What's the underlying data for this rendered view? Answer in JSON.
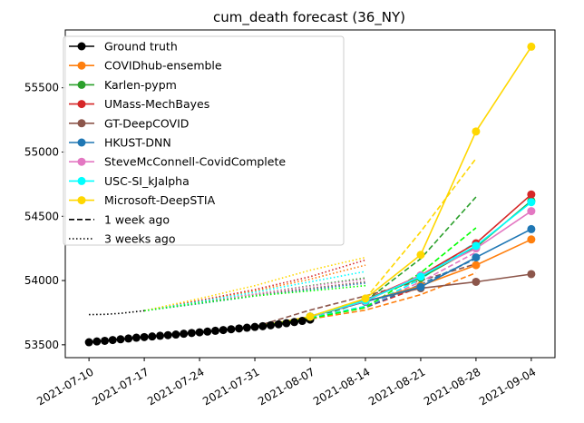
{
  "chart_data": {
    "type": "line",
    "title": "cum_death forecast (36_NY)",
    "xlabel": "",
    "ylabel": "",
    "x_ticks": [
      "2021-07-10",
      "2021-07-17",
      "2021-07-24",
      "2021-07-31",
      "2021-08-07",
      "2021-08-14",
      "2021-08-21",
      "2021-08-28",
      "2021-09-04"
    ],
    "x_range": [
      "2021-07-07",
      "2021-09-07"
    ],
    "y_ticks": [
      53500,
      54000,
      54500,
      55000,
      55500
    ],
    "ylim": [
      53400,
      55950
    ],
    "legend_position": "top-left",
    "grid": false,
    "ground_truth": {
      "name": "Ground truth",
      "color": "#000000",
      "x": [
        "2021-07-10",
        "2021-07-11",
        "2021-07-12",
        "2021-07-13",
        "2021-07-14",
        "2021-07-15",
        "2021-07-16",
        "2021-07-17",
        "2021-07-18",
        "2021-07-19",
        "2021-07-20",
        "2021-07-21",
        "2021-07-22",
        "2021-07-23",
        "2021-07-24",
        "2021-07-25",
        "2021-07-26",
        "2021-07-27",
        "2021-07-28",
        "2021-07-29",
        "2021-07-30",
        "2021-07-31",
        "2021-08-01",
        "2021-08-02",
        "2021-08-03",
        "2021-08-04",
        "2021-08-05",
        "2021-08-06",
        "2021-08-07"
      ],
      "y": [
        53520,
        53526,
        53531,
        53537,
        53543,
        53549,
        53555,
        53560,
        53565,
        53570,
        53575,
        53580,
        53586,
        53592,
        53597,
        53603,
        53609,
        53615,
        53621,
        53627,
        53633,
        53639,
        53645,
        53652,
        53660,
        53668,
        53677,
        53686,
        53696
      ]
    },
    "series": [
      {
        "name": "COVIDhub-ensemble",
        "color": "#ff7f0e",
        "x": [
          "2021-08-07",
          "2021-08-14",
          "2021-08-21",
          "2021-08-28",
          "2021-09-04"
        ],
        "y": [
          53720,
          53835,
          53960,
          54120,
          54320
        ],
        "week1_x": [
          "2021-07-31",
          "2021-08-07",
          "2021-08-14",
          "2021-08-21",
          "2021-08-28"
        ],
        "week1_y": [
          53640,
          53700,
          53770,
          53890,
          54060
        ],
        "week3_x": [
          "2021-07-17",
          "2021-07-24",
          "2021-07-31",
          "2021-08-07",
          "2021-08-14"
        ],
        "week3_y": [
          53765,
          53840,
          53920,
          54010,
          54120
        ]
      },
      {
        "name": "Karlen-pypm",
        "color": "#2ca02c",
        "x": [
          "2021-08-07",
          "2021-08-14",
          "2021-08-21",
          "2021-08-28",
          "2021-09-04"
        ],
        "y": [
          53720,
          53850,
          54020,
          54260,
          54620
        ],
        "week1_x": [
          "2021-07-31",
          "2021-08-07",
          "2021-08-14",
          "2021-08-21",
          "2021-08-28"
        ],
        "week1_y": [
          53640,
          53700,
          53840,
          54170,
          54650
        ],
        "week3_x": [
          "2021-07-17",
          "2021-07-24",
          "2021-07-31",
          "2021-08-07",
          "2021-08-14"
        ],
        "week3_y": [
          53765,
          53830,
          53895,
          53960,
          54020
        ]
      },
      {
        "name": "UMass-MechBayes",
        "color": "#d62728",
        "x": [
          "2021-08-07",
          "2021-08-14",
          "2021-08-21",
          "2021-08-28",
          "2021-09-04"
        ],
        "y": [
          53720,
          53850,
          54040,
          54290,
          54670
        ],
        "week1_x": [
          "2021-07-31",
          "2021-08-07",
          "2021-08-14",
          "2021-08-21",
          "2021-08-28"
        ],
        "week1_y": [
          53640,
          53710,
          53790,
          53950,
          54180
        ],
        "week3_x": [
          "2021-07-17",
          "2021-07-24",
          "2021-07-31",
          "2021-08-07",
          "2021-08-14"
        ],
        "week3_y": [
          53765,
          53845,
          53930,
          54030,
          54160
        ]
      },
      {
        "name": "GT-DeepCOVID",
        "color": "#8c564b",
        "x": [
          "2021-08-07",
          "2021-08-14",
          "2021-08-21",
          "2021-08-28",
          "2021-09-04"
        ],
        "y": [
          53720,
          53840,
          53940,
          53990,
          54050
        ],
        "week1_x": [
          "2021-07-31",
          "2021-08-07",
          "2021-08-14",
          "2021-08-21",
          "2021-08-28"
        ],
        "week1_y": [
          53640,
          53770,
          53880,
          54000,
          54130
        ],
        "week3_x": [
          "2021-07-17",
          "2021-07-24",
          "2021-07-31",
          "2021-08-07",
          "2021-08-14"
        ],
        "week3_y": [
          53765,
          53830,
          53890,
          53940,
          53990
        ]
      },
      {
        "name": "HKUST-DNN",
        "color": "#1f77b4",
        "x": [
          "2021-08-07",
          "2021-08-14",
          "2021-08-21",
          "2021-08-28",
          "2021-09-04"
        ],
        "y": [
          53720,
          53835,
          53950,
          54180,
          54400
        ],
        "week1_x": [
          "2021-07-31",
          "2021-08-07",
          "2021-08-14",
          "2021-08-21",
          "2021-08-28"
        ],
        "week1_y": [
          53640,
          53710,
          53790,
          53970,
          54170
        ],
        "week3_x": [
          "2021-07-17",
          "2021-07-24",
          "2021-07-31",
          "2021-08-07",
          "2021-08-14"
        ],
        "week3_y": [
          53765,
          53820,
          53880,
          53930,
          53980
        ]
      },
      {
        "name": "SteveMcConnell-CovidComplete",
        "color": "#e377c2",
        "x": [
          "2021-08-07",
          "2021-08-14",
          "2021-08-21",
          "2021-08-28",
          "2021-09-04"
        ],
        "y": [
          53720,
          53840,
          54040,
          54250,
          54540
        ],
        "week1_x": [
          "2021-07-31",
          "2021-08-07",
          "2021-08-14",
          "2021-08-21",
          "2021-08-28"
        ],
        "week1_y": [
          53640,
          53710,
          53800,
          53990,
          54220
        ],
        "week3_x": [
          "2021-07-17",
          "2021-07-24",
          "2021-07-31",
          "2021-08-07",
          "2021-08-14"
        ],
        "week3_y": [
          53765,
          53830,
          53895,
          53955,
          54010
        ]
      },
      {
        "name": "USC-SI_kJalpha",
        "color": "#00ffff",
        "x": [
          "2021-08-07",
          "2021-08-14",
          "2021-08-21",
          "2021-08-28",
          "2021-09-04"
        ],
        "y": [
          53720,
          53845,
          54030,
          54270,
          54610
        ],
        "week1_x": [
          "2021-07-31",
          "2021-08-07",
          "2021-08-14",
          "2021-08-21",
          "2021-08-28"
        ],
        "week1_y": [
          53640,
          53710,
          53800,
          54010,
          54300
        ],
        "week3_x": [
          "2021-07-17",
          "2021-07-24",
          "2021-07-31",
          "2021-08-07",
          "2021-08-14"
        ],
        "week3_y": [
          53765,
          53835,
          53910,
          53990,
          54070
        ]
      },
      {
        "name": "Microsoft-DeepSTIA",
        "color": "#ffd700",
        "x": [
          "2021-08-07",
          "2021-08-14",
          "2021-08-21",
          "2021-08-28",
          "2021-09-04"
        ],
        "y": [
          53720,
          53860,
          54200,
          55160,
          55820
        ],
        "week1_x": [
          "2021-07-31",
          "2021-08-07",
          "2021-08-14",
          "2021-08-21",
          "2021-08-28"
        ],
        "week1_y": [
          53640,
          53720,
          53860,
          54380,
          54950
        ],
        "week3_x": [
          "2021-07-17",
          "2021-07-24",
          "2021-07-31",
          "2021-08-07",
          "2021-08-14"
        ],
        "week3_y": [
          53765,
          53860,
          53960,
          54080,
          54180
        ]
      }
    ],
    "extra_series": [
      {
        "name": "",
        "color": "#00ff00",
        "week1_x": [
          "2021-07-31",
          "2021-08-07",
          "2021-08-14",
          "2021-08-21",
          "2021-08-28"
        ],
        "week1_y": [
          53640,
          53705,
          53790,
          54060,
          54410
        ],
        "week3_x": [
          "2021-07-17",
          "2021-07-24",
          "2021-07-31",
          "2021-08-07",
          "2021-08-14"
        ],
        "week3_y": [
          53765,
          53825,
          53880,
          53920,
          53960
        ]
      }
    ],
    "legend_style_entries": [
      {
        "name": "1 week ago",
        "dash": "dashed"
      },
      {
        "name": "3 weeks ago",
        "dash": "dotted"
      }
    ],
    "ground_truth_history": {
      "x": [
        "2021-07-10",
        "2021-07-12",
        "2021-07-14",
        "2021-07-17"
      ],
      "y": [
        53735,
        53737,
        53745,
        53765
      ]
    }
  }
}
